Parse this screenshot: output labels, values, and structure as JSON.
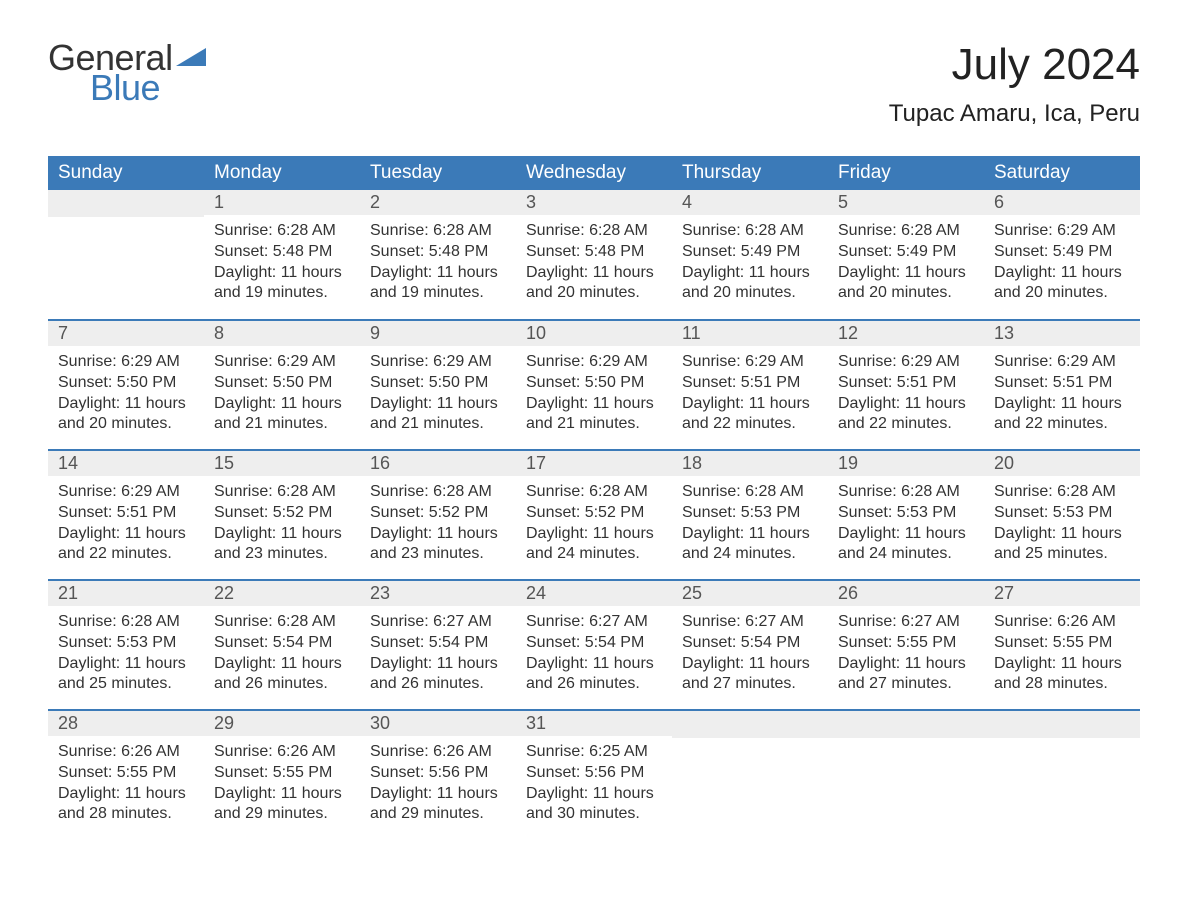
{
  "logo": {
    "text_general": "General",
    "text_blue": "Blue",
    "shape_color": "#3b7ab8"
  },
  "header": {
    "month_title": "July 2024",
    "location": "Tupac Amaru, Ica, Peru"
  },
  "styling": {
    "header_bg": "#3b7ab8",
    "header_text_color": "#ffffff",
    "daynum_bg": "#eeeeee",
    "daynum_color": "#555555",
    "row_border_color": "#3b7ab8",
    "body_text_color": "#333333",
    "page_bg": "#ffffff",
    "title_fontsize": 44,
    "location_fontsize": 24,
    "dayheader_fontsize": 19,
    "daynum_fontsize": 18,
    "content_fontsize": 16
  },
  "day_headers": [
    "Sunday",
    "Monday",
    "Tuesday",
    "Wednesday",
    "Thursday",
    "Friday",
    "Saturday"
  ],
  "weeks": [
    [
      {
        "n": "",
        "sunrise": "",
        "sunset": "",
        "daylight": ""
      },
      {
        "n": "1",
        "sunrise": "Sunrise: 6:28 AM",
        "sunset": "Sunset: 5:48 PM",
        "daylight": "Daylight: 11 hours and 19 minutes."
      },
      {
        "n": "2",
        "sunrise": "Sunrise: 6:28 AM",
        "sunset": "Sunset: 5:48 PM",
        "daylight": "Daylight: 11 hours and 19 minutes."
      },
      {
        "n": "3",
        "sunrise": "Sunrise: 6:28 AM",
        "sunset": "Sunset: 5:48 PM",
        "daylight": "Daylight: 11 hours and 20 minutes."
      },
      {
        "n": "4",
        "sunrise": "Sunrise: 6:28 AM",
        "sunset": "Sunset: 5:49 PM",
        "daylight": "Daylight: 11 hours and 20 minutes."
      },
      {
        "n": "5",
        "sunrise": "Sunrise: 6:28 AM",
        "sunset": "Sunset: 5:49 PM",
        "daylight": "Daylight: 11 hours and 20 minutes."
      },
      {
        "n": "6",
        "sunrise": "Sunrise: 6:29 AM",
        "sunset": "Sunset: 5:49 PM",
        "daylight": "Daylight: 11 hours and 20 minutes."
      }
    ],
    [
      {
        "n": "7",
        "sunrise": "Sunrise: 6:29 AM",
        "sunset": "Sunset: 5:50 PM",
        "daylight": "Daylight: 11 hours and 20 minutes."
      },
      {
        "n": "8",
        "sunrise": "Sunrise: 6:29 AM",
        "sunset": "Sunset: 5:50 PM",
        "daylight": "Daylight: 11 hours and 21 minutes."
      },
      {
        "n": "9",
        "sunrise": "Sunrise: 6:29 AM",
        "sunset": "Sunset: 5:50 PM",
        "daylight": "Daylight: 11 hours and 21 minutes."
      },
      {
        "n": "10",
        "sunrise": "Sunrise: 6:29 AM",
        "sunset": "Sunset: 5:50 PM",
        "daylight": "Daylight: 11 hours and 21 minutes."
      },
      {
        "n": "11",
        "sunrise": "Sunrise: 6:29 AM",
        "sunset": "Sunset: 5:51 PM",
        "daylight": "Daylight: 11 hours and 22 minutes."
      },
      {
        "n": "12",
        "sunrise": "Sunrise: 6:29 AM",
        "sunset": "Sunset: 5:51 PM",
        "daylight": "Daylight: 11 hours and 22 minutes."
      },
      {
        "n": "13",
        "sunrise": "Sunrise: 6:29 AM",
        "sunset": "Sunset: 5:51 PM",
        "daylight": "Daylight: 11 hours and 22 minutes."
      }
    ],
    [
      {
        "n": "14",
        "sunrise": "Sunrise: 6:29 AM",
        "sunset": "Sunset: 5:51 PM",
        "daylight": "Daylight: 11 hours and 22 minutes."
      },
      {
        "n": "15",
        "sunrise": "Sunrise: 6:28 AM",
        "sunset": "Sunset: 5:52 PM",
        "daylight": "Daylight: 11 hours and 23 minutes."
      },
      {
        "n": "16",
        "sunrise": "Sunrise: 6:28 AM",
        "sunset": "Sunset: 5:52 PM",
        "daylight": "Daylight: 11 hours and 23 minutes."
      },
      {
        "n": "17",
        "sunrise": "Sunrise: 6:28 AM",
        "sunset": "Sunset: 5:52 PM",
        "daylight": "Daylight: 11 hours and 24 minutes."
      },
      {
        "n": "18",
        "sunrise": "Sunrise: 6:28 AM",
        "sunset": "Sunset: 5:53 PM",
        "daylight": "Daylight: 11 hours and 24 minutes."
      },
      {
        "n": "19",
        "sunrise": "Sunrise: 6:28 AM",
        "sunset": "Sunset: 5:53 PM",
        "daylight": "Daylight: 11 hours and 24 minutes."
      },
      {
        "n": "20",
        "sunrise": "Sunrise: 6:28 AM",
        "sunset": "Sunset: 5:53 PM",
        "daylight": "Daylight: 11 hours and 25 minutes."
      }
    ],
    [
      {
        "n": "21",
        "sunrise": "Sunrise: 6:28 AM",
        "sunset": "Sunset: 5:53 PM",
        "daylight": "Daylight: 11 hours and 25 minutes."
      },
      {
        "n": "22",
        "sunrise": "Sunrise: 6:28 AM",
        "sunset": "Sunset: 5:54 PM",
        "daylight": "Daylight: 11 hours and 26 minutes."
      },
      {
        "n": "23",
        "sunrise": "Sunrise: 6:27 AM",
        "sunset": "Sunset: 5:54 PM",
        "daylight": "Daylight: 11 hours and 26 minutes."
      },
      {
        "n": "24",
        "sunrise": "Sunrise: 6:27 AM",
        "sunset": "Sunset: 5:54 PM",
        "daylight": "Daylight: 11 hours and 26 minutes."
      },
      {
        "n": "25",
        "sunrise": "Sunrise: 6:27 AM",
        "sunset": "Sunset: 5:54 PM",
        "daylight": "Daylight: 11 hours and 27 minutes."
      },
      {
        "n": "26",
        "sunrise": "Sunrise: 6:27 AM",
        "sunset": "Sunset: 5:55 PM",
        "daylight": "Daylight: 11 hours and 27 minutes."
      },
      {
        "n": "27",
        "sunrise": "Sunrise: 6:26 AM",
        "sunset": "Sunset: 5:55 PM",
        "daylight": "Daylight: 11 hours and 28 minutes."
      }
    ],
    [
      {
        "n": "28",
        "sunrise": "Sunrise: 6:26 AM",
        "sunset": "Sunset: 5:55 PM",
        "daylight": "Daylight: 11 hours and 28 minutes."
      },
      {
        "n": "29",
        "sunrise": "Sunrise: 6:26 AM",
        "sunset": "Sunset: 5:55 PM",
        "daylight": "Daylight: 11 hours and 29 minutes."
      },
      {
        "n": "30",
        "sunrise": "Sunrise: 6:26 AM",
        "sunset": "Sunset: 5:56 PM",
        "daylight": "Daylight: 11 hours and 29 minutes."
      },
      {
        "n": "31",
        "sunrise": "Sunrise: 6:25 AM",
        "sunset": "Sunset: 5:56 PM",
        "daylight": "Daylight: 11 hours and 30 minutes."
      },
      {
        "n": "",
        "sunrise": "",
        "sunset": "",
        "daylight": ""
      },
      {
        "n": "",
        "sunrise": "",
        "sunset": "",
        "daylight": ""
      },
      {
        "n": "",
        "sunrise": "",
        "sunset": "",
        "daylight": ""
      }
    ]
  ]
}
